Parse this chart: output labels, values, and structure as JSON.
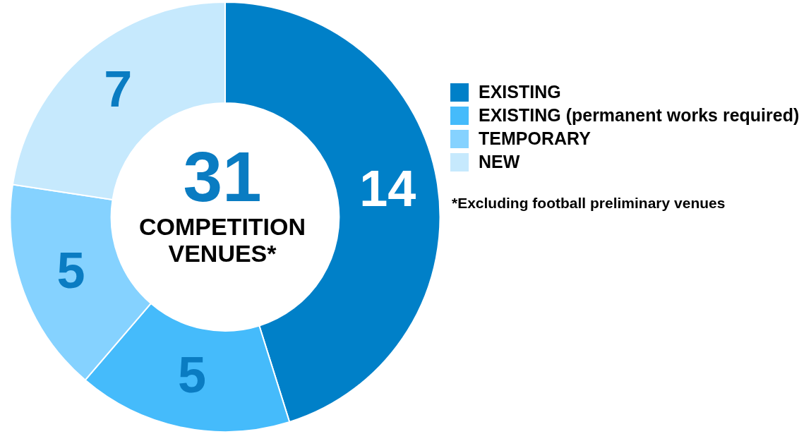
{
  "chart_data": {
    "type": "donut",
    "categories": [
      "EXISTING",
      "EXISTING (permanent works required)",
      "TEMPORARY",
      "NEW"
    ],
    "values": [
      14,
      5,
      5,
      7
    ],
    "colors": [
      "#0080c8",
      "#45bbfb",
      "#85d2ff",
      "#c6e9fd"
    ],
    "data_labels": true,
    "legend": "right",
    "annotations": [
      "31",
      "COMPETITION VENUES*",
      "*Excluding football preliminary venues"
    ]
  }
}
